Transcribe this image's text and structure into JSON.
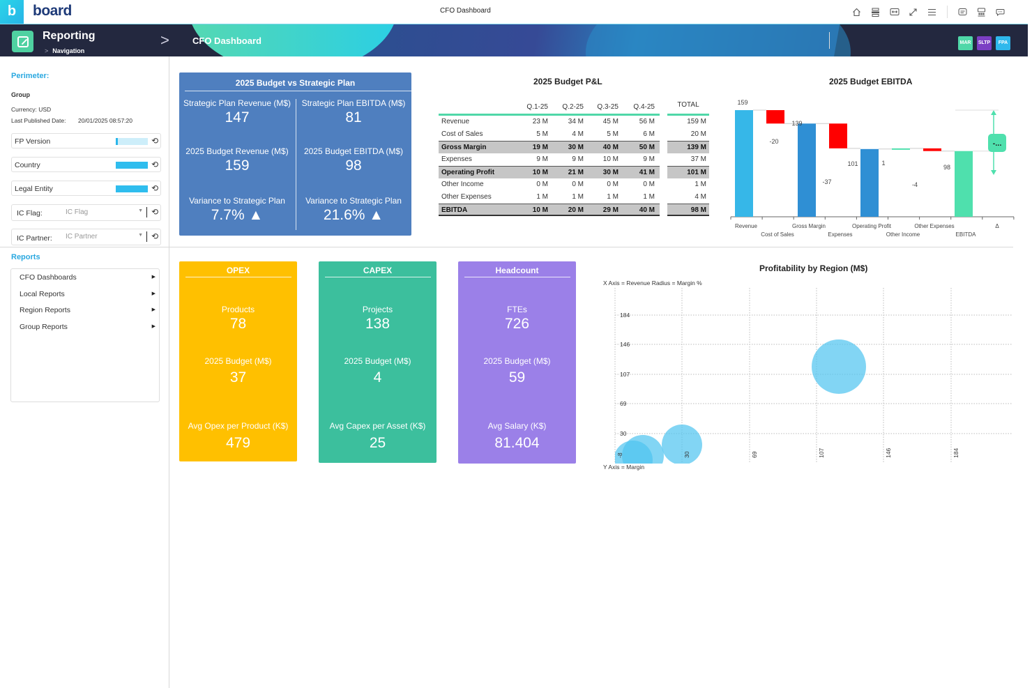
{
  "topbar": {
    "logo_letter": "b",
    "brand": "board",
    "document_title": "CFO Dashboard",
    "icons": [
      "home-icon",
      "layout-icon",
      "fit-width-icon",
      "fullscreen-icon",
      "menu-icon",
      "caption-icon",
      "presentation-icon",
      "comment-icon"
    ]
  },
  "banner": {
    "title": "Reporting",
    "subtitle": "Navigation",
    "page": "CFO Dashboard",
    "tags": [
      {
        "label": "MAR",
        "color": "#4fd7a8"
      },
      {
        "label": "SLTP",
        "color": "#7b3fc4"
      },
      {
        "label": "FPA",
        "color": "#2fb8ec"
      }
    ]
  },
  "sidebar": {
    "perimeter_title": "Perimeter:",
    "group_label": "Group",
    "currency": "Currency: USD",
    "last_published_label": "Last Published Date:",
    "last_published_value": "20/01/2025 08:57:20",
    "filters": [
      {
        "label": "FP Version",
        "type": "bar",
        "fill": "partial"
      },
      {
        "label": "Country",
        "type": "bar",
        "fill": "full"
      },
      {
        "label": "Legal Entity",
        "type": "bar",
        "fill": "full"
      },
      {
        "label": "IC Flag:",
        "type": "dropdown",
        "placeholder": "IC Flag"
      },
      {
        "label": "IC Partner:",
        "type": "dropdown",
        "placeholder": "IC Partner"
      }
    ],
    "reports_title": "Reports",
    "reports": [
      "CFO Dashboards",
      "Local Reports",
      "Region Reports",
      "Group Reports"
    ]
  },
  "budget_vs_plan": {
    "title": "2025 Budget vs Strategic Plan",
    "cells": [
      {
        "label": "Strategic Plan Revenue (M$)",
        "value": "147"
      },
      {
        "label": "Strategic Plan EBITDA (M$)",
        "value": "81"
      },
      {
        "label": "2025 Budget Revenue (M$)",
        "value": "159"
      },
      {
        "label": "2025 Budget EBITDA (M$)",
        "value": "98"
      },
      {
        "label": "Variance to Strategic Plan",
        "value": "7.7% ▲"
      },
      {
        "label": "Variance to Strategic Plan",
        "value": "21.6% ▲"
      }
    ]
  },
  "pl": {
    "title": "2025 Budget P&L",
    "columns": [
      "Q.1-25",
      "Q.2-25",
      "Q.3-25",
      "Q.4-25"
    ],
    "total_header": "TOTAL",
    "rows": [
      {
        "name": "Revenue",
        "values": [
          "23 M",
          "34 M",
          "45 M",
          "56 M"
        ],
        "total": "159 M",
        "highlight": false
      },
      {
        "name": "Cost of Sales",
        "values": [
          "5 M",
          "4 M",
          "5 M",
          "6 M"
        ],
        "total": "20 M",
        "highlight": false
      },
      {
        "name": "Gross Margin",
        "values": [
          "19 M",
          "30 M",
          "40 M",
          "50 M"
        ],
        "total": "139 M",
        "highlight": true
      },
      {
        "name": "Expenses",
        "values": [
          "9 M",
          "9 M",
          "10 M",
          "9 M"
        ],
        "total": "37 M",
        "highlight": false
      },
      {
        "name": "Operating Profit",
        "values": [
          "10 M",
          "21 M",
          "30 M",
          "41 M"
        ],
        "total": "101 M",
        "highlight": true
      },
      {
        "name": "Other Income",
        "values": [
          "0 M",
          "0 M",
          "0 M",
          "0 M"
        ],
        "total": "1 M",
        "highlight": false
      },
      {
        "name": "Other Expenses",
        "values": [
          "1 M",
          "1 M",
          "1 M",
          "1 M"
        ],
        "total": "4 M",
        "highlight": false
      },
      {
        "name": "EBITDA",
        "values": [
          "10 M",
          "20 M",
          "29 M",
          "40 M"
        ],
        "total": "98 M",
        "highlight": true
      }
    ]
  },
  "waterfall": {
    "title": "2025 Budget EBITDA",
    "delta_badge": "-...",
    "categories": [
      "Revenue",
      "Cost of Sales",
      "Gross Margin",
      "Expenses",
      "Operating Profit",
      "Other Income",
      "Other Expenses",
      "EBITDA",
      "Δ"
    ],
    "labels": [
      "159",
      "-20",
      "139",
      "-37",
      "101",
      "1",
      "-4",
      "98"
    ]
  },
  "cards": [
    {
      "title": "OPEX",
      "color": "#ffc000",
      "items": [
        {
          "label": "Products",
          "value": "78"
        },
        {
          "label": "2025 Budget (M$)",
          "value": "37"
        },
        {
          "label": "Avg Opex per Product (K$)",
          "value": "479"
        }
      ]
    },
    {
      "title": "CAPEX",
      "color": "#3cbf9d",
      "items": [
        {
          "label": "Projects",
          "value": "138"
        },
        {
          "label": "2025 Budget (M$)",
          "value": "4"
        },
        {
          "label": "Avg Capex per Asset (K$)",
          "value": "25"
        }
      ]
    },
    {
      "title": "Headcount",
      "color": "#9b80e8",
      "items": [
        {
          "label": "FTEs",
          "value": "726"
        },
        {
          "label": "2025 Budget (M$)",
          "value": "59"
        },
        {
          "label": "Avg Salary (K$)",
          "value": "81.404"
        }
      ]
    }
  ],
  "bubble": {
    "title": "Profitability by Region (M$)",
    "x_caption": "X Axis = Revenue Radius = Margin %",
    "y_caption": "Y Axis = Margin",
    "y_ticks": [
      "184",
      "146",
      "107",
      "69",
      "30"
    ],
    "x_ticks": [
      "-8",
      "30",
      "69",
      "107",
      "146",
      "184"
    ]
  },
  "chart_data": [
    {
      "type": "bar",
      "subtype": "waterfall",
      "title": "2025 Budget EBITDA",
      "categories": [
        "Revenue",
        "Cost of Sales",
        "Gross Margin",
        "Expenses",
        "Operating Profit",
        "Other Income",
        "Other Expenses",
        "EBITDA",
        "Δ"
      ],
      "values": [
        159,
        -20,
        139,
        -37,
        101,
        1,
        -4,
        98,
        null
      ],
      "colors": {
        "total": "#36b7e8",
        "subtotal": "#2f8fd4",
        "negative": "#ff0000",
        "positive": "#4fe0ad",
        "final": "#4fe0ad"
      }
    },
    {
      "type": "scatter",
      "subtype": "bubble",
      "title": "Profitability by Region (M$)",
      "xlabel": "Revenue",
      "ylabel": "Margin",
      "size_label": "Margin %",
      "x_ticks": [
        -8,
        30,
        69,
        107,
        146,
        184
      ],
      "y_ticks": [
        30,
        69,
        107,
        146,
        184
      ],
      "points": [
        {
          "x": -4,
          "y": 10,
          "r": 28
        },
        {
          "x": 4,
          "y": 16,
          "r": 28
        },
        {
          "x": 30,
          "y": 20,
          "r": 28
        },
        {
          "x": 117,
          "y": 115,
          "r": 38
        }
      ]
    }
  ]
}
